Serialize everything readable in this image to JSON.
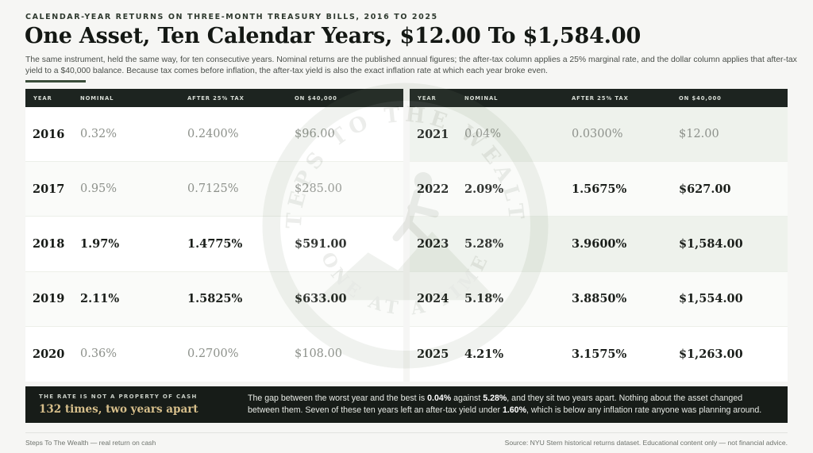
{
  "header": {
    "kicker": "CALENDAR-YEAR RETURNS ON THREE-MONTH TREASURY BILLS, 2016 TO 2025",
    "title": "One Asset, Ten Calendar Years, $12.00 To $1,584.00",
    "subtitle": "The same instrument, held the same way, for ten consecutive years. Nominal returns are the published annual figures; the after-tax column applies a 25% marginal rate, and the dollar column applies that after-tax yield to a $40,000 balance. Because tax comes before inflation, the after-tax yield is also the exact inflation rate at which each year broke even."
  },
  "columns": {
    "year": "YEAR",
    "nominal": "NOMINAL",
    "after_tax": "AFTER 25% TAX",
    "dollars": "ON $40,000"
  },
  "tables": {
    "left": {
      "rows": [
        {
          "year": "2016",
          "nominal": "0.32%",
          "after_tax": "0.2400%",
          "dollars": "$96.00",
          "muted": true
        },
        {
          "year": "2017",
          "nominal": "0.95%",
          "after_tax": "0.7125%",
          "dollars": "$285.00",
          "muted": true
        },
        {
          "year": "2018",
          "nominal": "1.97%",
          "after_tax": "1.4775%",
          "dollars": "$591.00",
          "muted": false
        },
        {
          "year": "2019",
          "nominal": "2.11%",
          "after_tax": "1.5825%",
          "dollars": "$633.00",
          "muted": false
        },
        {
          "year": "2020",
          "nominal": "0.36%",
          "after_tax": "0.2700%",
          "dollars": "$108.00",
          "muted": true
        }
      ]
    },
    "right": {
      "rows": [
        {
          "year": "2021",
          "nominal": "0.04%",
          "after_tax": "0.0300%",
          "dollars": "$12.00",
          "muted": true
        },
        {
          "year": "2022",
          "nominal": "2.09%",
          "after_tax": "1.5675%",
          "dollars": "$627.00",
          "muted": false
        },
        {
          "year": "2023",
          "nominal": "5.28%",
          "after_tax": "3.9600%",
          "dollars": "$1,584.00",
          "muted": false
        },
        {
          "year": "2024",
          "nominal": "5.18%",
          "after_tax": "3.8850%",
          "dollars": "$1,554.00",
          "muted": false
        },
        {
          "year": "2025",
          "nominal": "4.21%",
          "after_tax": "3.1575%",
          "dollars": "$1,263.00",
          "muted": false
        }
      ]
    }
  },
  "callout": {
    "kicker": "THE RATE IS NOT A PROPERTY OF CASH",
    "headline": "132 times, two years apart",
    "text_1": "The gap between the worst year and the best is ",
    "bold_1": "0.04%",
    "text_2": " against ",
    "bold_2": "5.28%",
    "text_3": ", and they sit two years apart. Nothing about the asset changed between them. Seven of these ten years left an after-tax yield under ",
    "bold_3": "1.60%",
    "text_4": ", which is below any inflation rate anyone was planning around."
  },
  "footer": {
    "left": "Steps To The Wealth — real return on cash",
    "right": "Source: NYU Stern historical returns dataset. Educational content only — not financial advice."
  },
  "watermark": {
    "brand_text": "STEPS TO THE WEALTH",
    "tagline_text": "ONE AT A TIME"
  },
  "colors": {
    "header_bg": "#1d2420",
    "accent": "#3a4d3a",
    "callout_bg": "#171c18",
    "callout_headline": "#d7bf8b",
    "muted_value": "#8d918b"
  }
}
